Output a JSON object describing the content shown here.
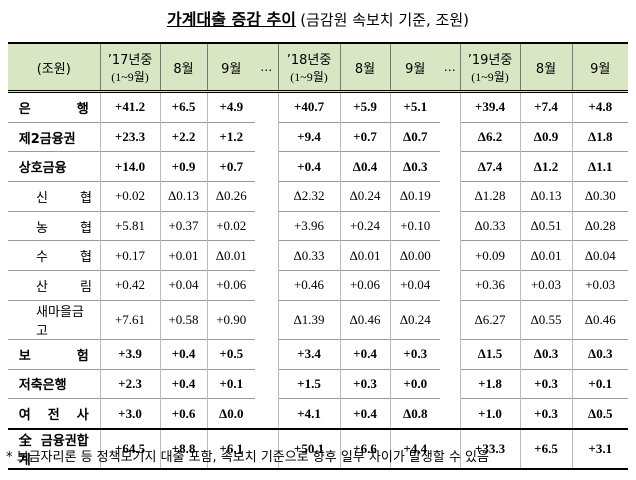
{
  "title": "가계대출 증감 추이",
  "subtitle": "(금감원 속보치 기준, 조원)",
  "table": {
    "header": [
      "(조원)",
      "’17년중",
      "(1~9월)",
      "8월",
      "9월",
      "…",
      "’18년중",
      "(1~9월)",
      "8월",
      "9월",
      "…",
      "’19년중",
      "(1~9월)",
      "8월",
      "9월"
    ],
    "rows": [
      {
        "label": "은 행",
        "values": [
          "+41.2",
          "+6.5",
          "+4.9",
          "+40.7",
          "+5.9",
          "+5.1",
          "+39.4",
          "+7.4",
          "+4.8"
        ]
      },
      {
        "label": "제2금융권",
        "values": [
          "+23.3",
          "+2.2",
          "+1.2",
          "+9.4",
          "+0.7",
          "Δ0.7",
          "Δ6.2",
          "Δ0.9",
          "Δ1.8"
        ]
      },
      {
        "label": "상호금융",
        "values": [
          "+14.0",
          "+0.9",
          "+0.7",
          "+0.4",
          "Δ0.4",
          "Δ0.3",
          "Δ7.4",
          "Δ1.2",
          "Δ1.1"
        ]
      },
      {
        "label": "신 협",
        "values": [
          "+0.02",
          "Δ0.13",
          "Δ0.26",
          "Δ2.32",
          "Δ0.24",
          "Δ0.19",
          "Δ1.28",
          "Δ0.13",
          "Δ0.30"
        ]
      },
      {
        "label": "농 협",
        "values": [
          "+5.81",
          "+0.37",
          "+0.02",
          "+3.96",
          "+0.24",
          "+0.10",
          "Δ0.33",
          "Δ0.51",
          "Δ0.28"
        ]
      },
      {
        "label": "수 협",
        "values": [
          "+0.17",
          "+0.01",
          "Δ0.01",
          "Δ0.33",
          "Δ0.01",
          "Δ0.00",
          "+0.09",
          "Δ0.01",
          "Δ0.04"
        ]
      },
      {
        "label": "산 림",
        "values": [
          "+0.42",
          "+0.04",
          "+0.06",
          "+0.46",
          "+0.06",
          "+0.04",
          "+0.36",
          "+0.03",
          "+0.03"
        ]
      },
      {
        "label": "새마을금고",
        "values": [
          "+7.61",
          "+0.58",
          "+0.90",
          "Δ1.39",
          "Δ0.46",
          "Δ0.24",
          "Δ6.27",
          "Δ0.55",
          "Δ0.46"
        ]
      },
      {
        "label": "보 험",
        "values": [
          "+3.9",
          "+0.4",
          "+0.5",
          "+3.4",
          "+0.4",
          "+0.3",
          "Δ1.5",
          "Δ0.3",
          "Δ0.3"
        ]
      },
      {
        "label": "저축은행",
        "values": [
          "+2.3",
          "+0.4",
          "+0.1",
          "+1.5",
          "+0.3",
          "+0.0",
          "+1.8",
          "+0.3",
          "+0.1"
        ]
      },
      {
        "label": "여 전 사",
        "values": [
          "+3.0",
          "+0.6",
          "Δ0.0",
          "+4.1",
          "+0.4",
          "Δ0.8",
          "+1.0",
          "+0.3",
          "Δ0.5"
        ]
      },
      {
        "label": "全금융권합계",
        "values": [
          "+64.5",
          "+8.8",
          "+6.1",
          "+50.1",
          "+6.6",
          "+4.4",
          "+33.3",
          "+6.5",
          "+3.1"
        ]
      }
    ]
  },
  "note": "* 보금자리론 등 정책모기지 대출 포함, 속보치 기준으로 향후 일부 차이가 발생할 수 있음"
}
